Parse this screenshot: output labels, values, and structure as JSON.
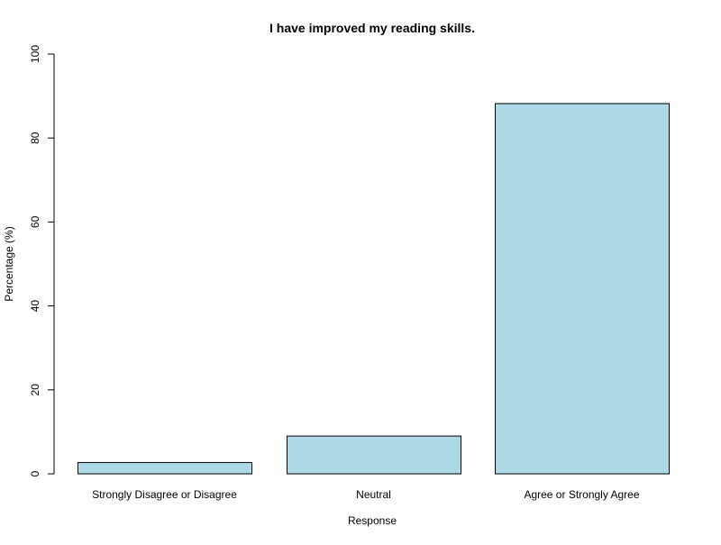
{
  "chart_data": {
    "type": "bar",
    "title": "I have improved my reading skills.",
    "xlabel": "Response",
    "ylabel": "Percentage (%)",
    "categories": [
      "Strongly Disagree or Disagree",
      "Neutral",
      "Agree or Strongly Agree"
    ],
    "values": [
      2.7,
      9.0,
      88.2
    ],
    "ylim": [
      0,
      100
    ],
    "yticks": [
      "0",
      "20",
      "40",
      "60",
      "80",
      "100"
    ],
    "grid": false,
    "legend": "none",
    "bar_color": "#add8e6",
    "bar_stroke": "#000000"
  }
}
